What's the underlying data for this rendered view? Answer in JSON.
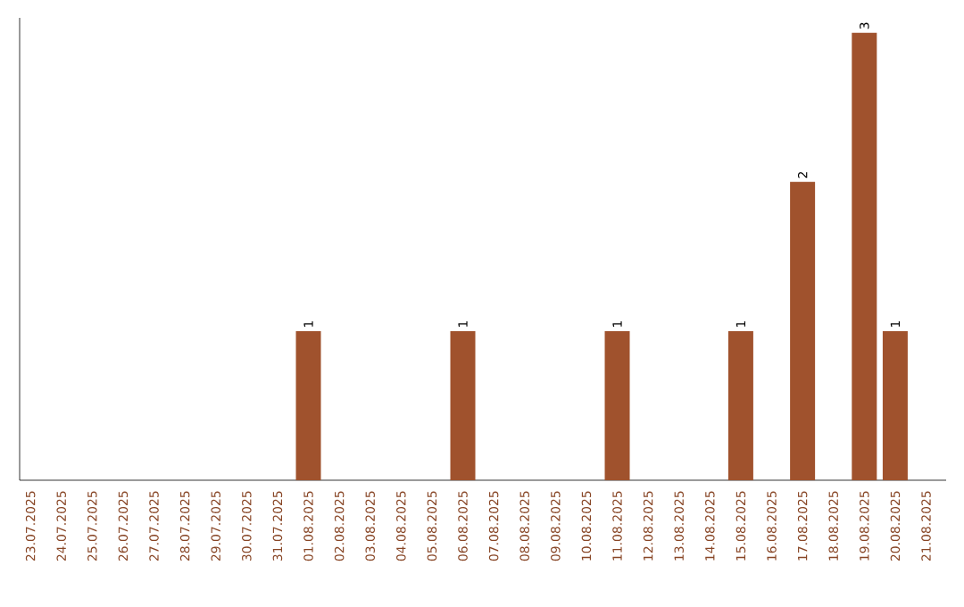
{
  "chart_data": {
    "type": "bar",
    "categories": [
      "23.07.2025",
      "24.07.2025",
      "25.07.2025",
      "26.07.2025",
      "27.07.2025",
      "28.07.2025",
      "29.07.2025",
      "30.07.2025",
      "31.07.2025",
      "01.08.2025",
      "02.08.2025",
      "03.08.2025",
      "04.08.2025",
      "05.08.2025",
      "06.08.2025",
      "07.08.2025",
      "08.08.2025",
      "09.08.2025",
      "10.08.2025",
      "11.08.2025",
      "12.08.2025",
      "13.08.2025",
      "14.08.2025",
      "15.08.2025",
      "16.08.2025",
      "17.08.2025",
      "18.08.2025",
      "19.08.2025",
      "20.08.2025",
      "21.08.2025"
    ],
    "values": [
      0,
      0,
      0,
      0,
      0,
      0,
      0,
      0,
      0,
      1,
      0,
      0,
      0,
      0,
      1,
      0,
      0,
      0,
      0,
      1,
      0,
      0,
      0,
      1,
      0,
      2,
      0,
      3,
      1,
      0
    ],
    "value_labels": [
      null,
      null,
      null,
      null,
      null,
      null,
      null,
      null,
      null,
      "1",
      null,
      null,
      null,
      null,
      "1",
      null,
      null,
      null,
      null,
      "1",
      null,
      null,
      null,
      "1",
      null,
      "2",
      null,
      "3",
      "1",
      null
    ],
    "color": "#a0522d",
    "ylim": [
      0,
      3.1
    ],
    "grid": false,
    "tick_labels": "x"
  }
}
